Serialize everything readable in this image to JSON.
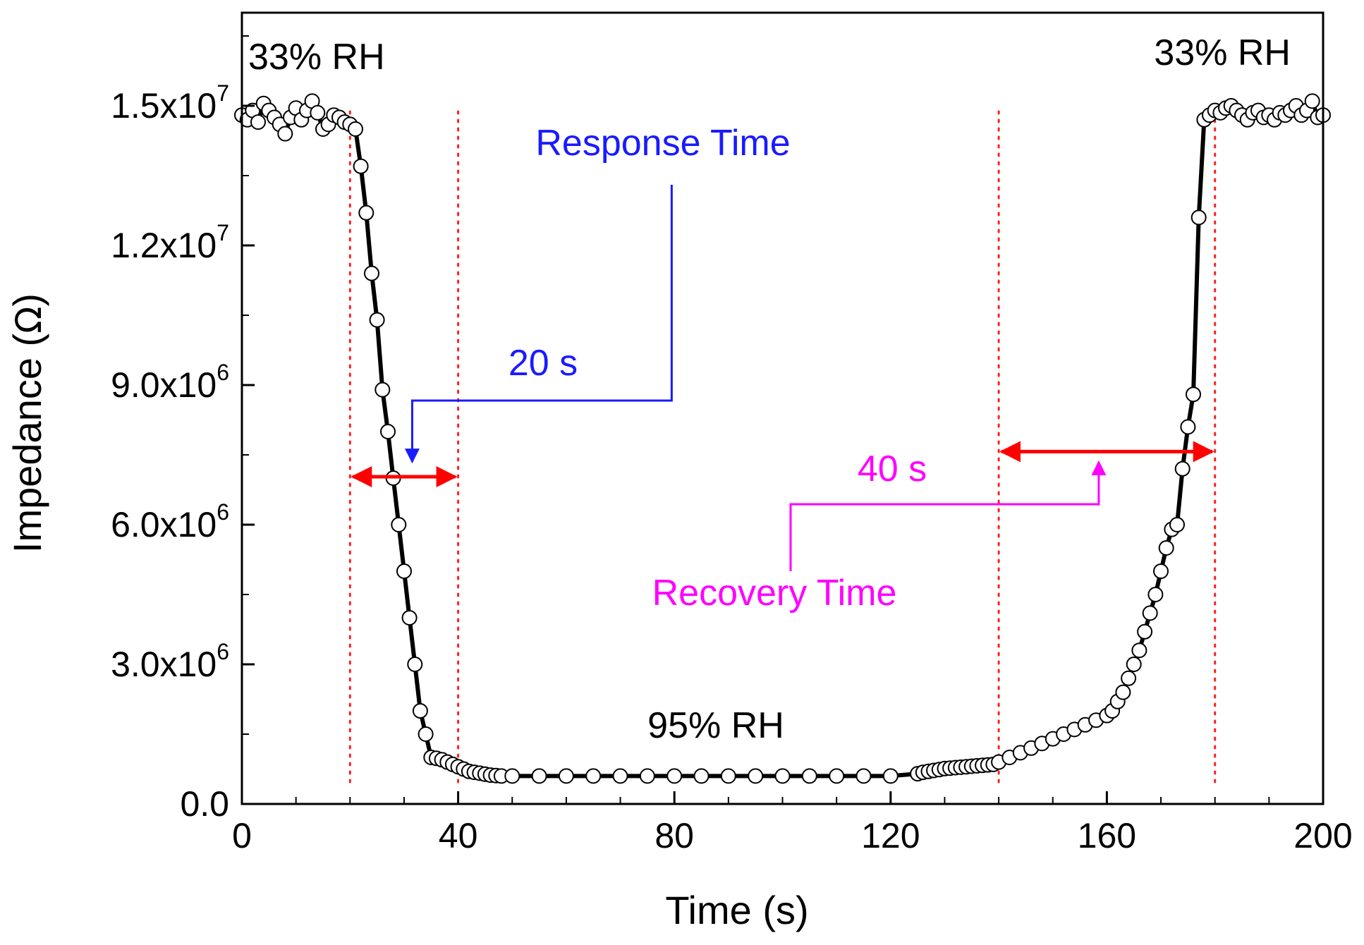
{
  "chart_data": {
    "type": "scatter",
    "title": "",
    "xlabel": "Time (s)",
    "ylabel_main": "Impedance (",
    "ylabel_symbol": "Ω",
    "ylabel_close": ")",
    "xlim": [
      0,
      200
    ],
    "ylim": [
      0,
      17000000
    ],
    "x_ticks": [
      {
        "value": 0,
        "label": "0"
      },
      {
        "value": 40,
        "label": "40"
      },
      {
        "value": 80,
        "label": "80"
      },
      {
        "value": 120,
        "label": "120"
      },
      {
        "value": 160,
        "label": "160"
      },
      {
        "value": 200,
        "label": "200"
      }
    ],
    "y_ticks": [
      {
        "value": 0,
        "label": "0.0",
        "exp": ""
      },
      {
        "value": 3000000,
        "label": "3.0x10",
        "exp": "6"
      },
      {
        "value": 6000000,
        "label": "6.0x10",
        "exp": "6"
      },
      {
        "value": 9000000,
        "label": "9.0x10",
        "exp": "6"
      },
      {
        "value": 12000000,
        "label": "1.2x10",
        "exp": "7"
      },
      {
        "value": 15000000,
        "label": "1.5x10",
        "exp": "7"
      }
    ],
    "series": [
      {
        "name": "Impedance",
        "marker": "open-circle",
        "line": "black",
        "x": [
          0,
          1,
          2,
          3,
          4,
          5,
          6,
          7,
          8,
          9,
          10,
          11,
          12,
          13,
          14,
          15,
          16,
          17,
          18,
          19,
          20,
          21,
          22,
          23,
          24,
          25,
          26,
          27,
          28,
          29,
          30,
          31,
          32,
          33,
          34,
          35,
          36,
          37,
          38,
          39,
          40,
          41,
          42,
          43,
          44,
          45,
          46,
          47,
          48,
          50,
          55,
          60,
          65,
          70,
          75,
          80,
          85,
          90,
          95,
          100,
          105,
          110,
          115,
          120,
          125,
          126,
          127,
          128,
          129,
          130,
          131,
          132,
          133,
          134,
          135,
          136,
          137,
          138,
          139,
          140,
          142,
          144,
          146,
          148,
          150,
          152,
          154,
          156,
          158,
          160,
          161,
          162,
          163,
          164,
          165,
          166,
          167,
          168,
          169,
          170,
          171,
          172,
          173,
          174,
          175,
          176,
          177,
          178,
          179,
          180,
          181,
          182,
          183,
          184,
          185,
          186,
          187,
          188,
          189,
          190,
          191,
          192,
          193,
          194,
          195,
          196,
          197,
          198,
          199,
          200
        ],
        "y": [
          14800000,
          14700000,
          14900000,
          14650000,
          15050000,
          14900000,
          14750000,
          14600000,
          14400000,
          14750000,
          14950000,
          14700000,
          14900000,
          15100000,
          14850000,
          14500000,
          14600000,
          14800000,
          14750000,
          14650000,
          14600000,
          14500000,
          13700000,
          12700000,
          11400000,
          10400000,
          8900000,
          8000000,
          7000000,
          6000000,
          5000000,
          4000000,
          3000000,
          2000000,
          1500000,
          1000000,
          980000,
          950000,
          900000,
          850000,
          800000,
          750000,
          700000,
          680000,
          660000,
          640000,
          620000,
          610000,
          600000,
          600000,
          600000,
          600000,
          600000,
          600000,
          600000,
          600000,
          600000,
          600000,
          600000,
          600000,
          600000,
          600000,
          600000,
          600000,
          650000,
          680000,
          700000,
          720000,
          740000,
          760000,
          770000,
          780000,
          790000,
          800000,
          810000,
          820000,
          830000,
          840000,
          850000,
          900000,
          1000000,
          1100000,
          1200000,
          1300000,
          1400000,
          1500000,
          1600000,
          1700000,
          1800000,
          1900000,
          2000000,
          2200000,
          2400000,
          2700000,
          3000000,
          3300000,
          3700000,
          4100000,
          4500000,
          5000000,
          5500000,
          5900000,
          6000000,
          7200000,
          8100000,
          8800000,
          12600000,
          14700000,
          14800000,
          14900000,
          14850000,
          14950000,
          15000000,
          14900000,
          14800000,
          14700000,
          14850000,
          14900000,
          14750000,
          14800000,
          14700000,
          14850000,
          14800000,
          14900000,
          15000000,
          14800000,
          14900000,
          15100000,
          14750000,
          14800000
        ]
      }
    ],
    "vertical_markers_x": [
      20,
      40,
      140,
      180
    ],
    "annotations": {
      "low_rh_left": "33% RH",
      "low_rh_right": "33% RH",
      "high_rh": "95% RH",
      "response_label": "Response Time",
      "response_value": "20 s",
      "response_range": [
        20,
        40
      ],
      "response_level": 7000000,
      "recovery_label": "Recovery Time",
      "recovery_value": "40 s",
      "recovery_range": [
        140,
        180
      ],
      "recovery_level": 7600000
    },
    "colors": {
      "axis": "#000000",
      "curve": "#000000",
      "marker_fill": "#ffffff",
      "guide_lines": "#ff2020",
      "range_arrows": "#ff0000",
      "response": "#1a1aff",
      "recovery": "#ff00ff"
    }
  }
}
